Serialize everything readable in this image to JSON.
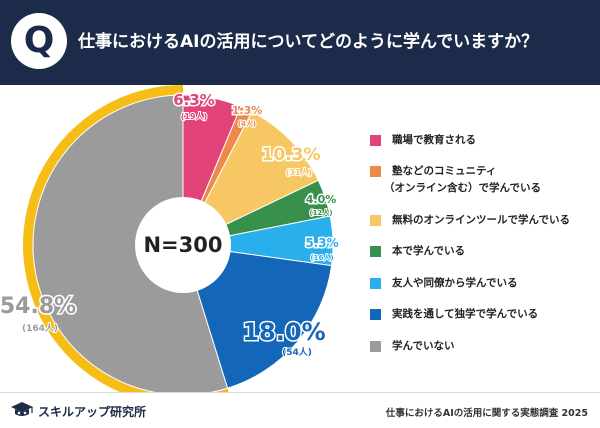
{
  "header": {
    "icon_letter": "Q",
    "question": "仕事におけるAIの活用についてどのように学んでいますか？"
  },
  "chart_data": {
    "type": "pie",
    "title": "仕事におけるAIの活用についてどのように学んでいますか？",
    "center_label": "N=300",
    "n": 300,
    "slices": [
      {
        "label": "職場で教育される",
        "value": 6.3,
        "value_label": "6.3%",
        "count_label": "(19人)",
        "color": "#e2447a"
      },
      {
        "label": "塾などのコミュニティ（オンライン含む）で学んでいる",
        "value": 1.3,
        "value_label": "1.3%",
        "count_label": "(4人)",
        "color": "#ec8a4c"
      },
      {
        "label": "無料のオンラインツールで学んでいる",
        "value": 10.3,
        "value_label": "10.3%",
        "count_label": "(31人)",
        "color": "#f6c762"
      },
      {
        "label": "本で学んでいる",
        "value": 4.0,
        "value_label": "4.0%",
        "count_label": "(12人)",
        "color": "#37914c"
      },
      {
        "label": "友人や同僚から学んでいる",
        "value": 5.3,
        "value_label": "5.3%",
        "count_label": "(16人)",
        "color": "#29b0ec"
      },
      {
        "label": "実践を通して独学で学んでいる",
        "value": 18.0,
        "value_label": "18.0%",
        "count_label": "(54人)",
        "color": "#1466b8"
      },
      {
        "label": "学んでいない",
        "value": 54.8,
        "value_label": "54.8%",
        "count_label": "(164人)",
        "color": "#9b9b9b"
      }
    ],
    "highlight_color": "#f6bd16"
  },
  "legend": {
    "items": [
      {
        "line1": "職場で教育される",
        "line2": ""
      },
      {
        "line1": "塾などのコミュニティ",
        "line2": "（オンライン含む）で学んでいる"
      },
      {
        "line1": "無料のオンラインツールで学んでいる",
        "line2": ""
      },
      {
        "line1": "本で学んでいる",
        "line2": ""
      },
      {
        "line1": "友人や同僚から学んでいる",
        "line2": ""
      },
      {
        "line1": "実践を通して独学で学んでいる",
        "line2": ""
      },
      {
        "line1": "学んでいない",
        "line2": ""
      }
    ]
  },
  "footer": {
    "brand": "スキルアップ研究所",
    "source": "仕事におけるAIの活用に関する実態調査 2025"
  }
}
